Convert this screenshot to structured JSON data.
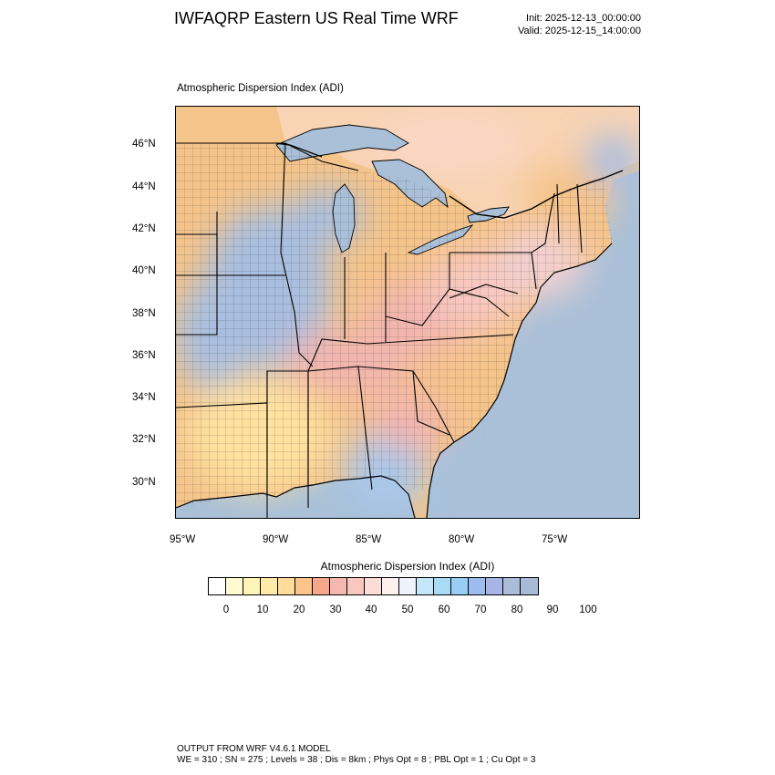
{
  "header": {
    "title": "IWFAQRP Eastern US Real Time WRF",
    "init": "Init: 2025-12-13_00:00:00",
    "valid": "Valid: 2025-12-15_14:00:00"
  },
  "plot": {
    "label": "Atmospheric Dispersion Index   (ADI)",
    "lat_ticks": [
      "46°N",
      "44°N",
      "42°N",
      "40°N",
      "38°N",
      "36°N",
      "34°N",
      "32°N",
      "30°N"
    ],
    "lon_ticks": [
      "95°W",
      "90°W",
      "85°W",
      "80°W",
      "75°W"
    ],
    "colors": {
      "ocean": "#a9c0d8",
      "land_low": "#f5c48a",
      "land_mid": "#f3b5b0",
      "land_high": "#a9bfe0",
      "boundaries": "#000000"
    }
  },
  "colorbar": {
    "title": "Atmospheric Dispersion Index  (ADI)",
    "colors": [
      "#ffffff",
      "#fffad2",
      "#fff4b8",
      "#ffeaa8",
      "#ffdc9a",
      "#fcc48a",
      "#f7a88c",
      "#f5b8b0",
      "#f8c8c0",
      "#fbdcd6",
      "#fdf0ee",
      "#eef2fb",
      "#c6e6fa",
      "#a8dcf6",
      "#98cdf4",
      "#9cbcf0",
      "#a6b4e6",
      "#a9bdd8",
      "#a7bad6"
    ],
    "labels": [
      "0",
      "10",
      "20",
      "30",
      "40",
      "50",
      "60",
      "70",
      "80",
      "90",
      "100"
    ]
  },
  "footer": {
    "line1": "OUTPUT FROM WRF V4.6.1 MODEL",
    "line2": "WE = 310 ; SN = 275 ; Levels = 38 ; Dis = 8km ; Phys Opt = 8 ; PBL Opt = 1 ; Cu Opt = 3"
  }
}
